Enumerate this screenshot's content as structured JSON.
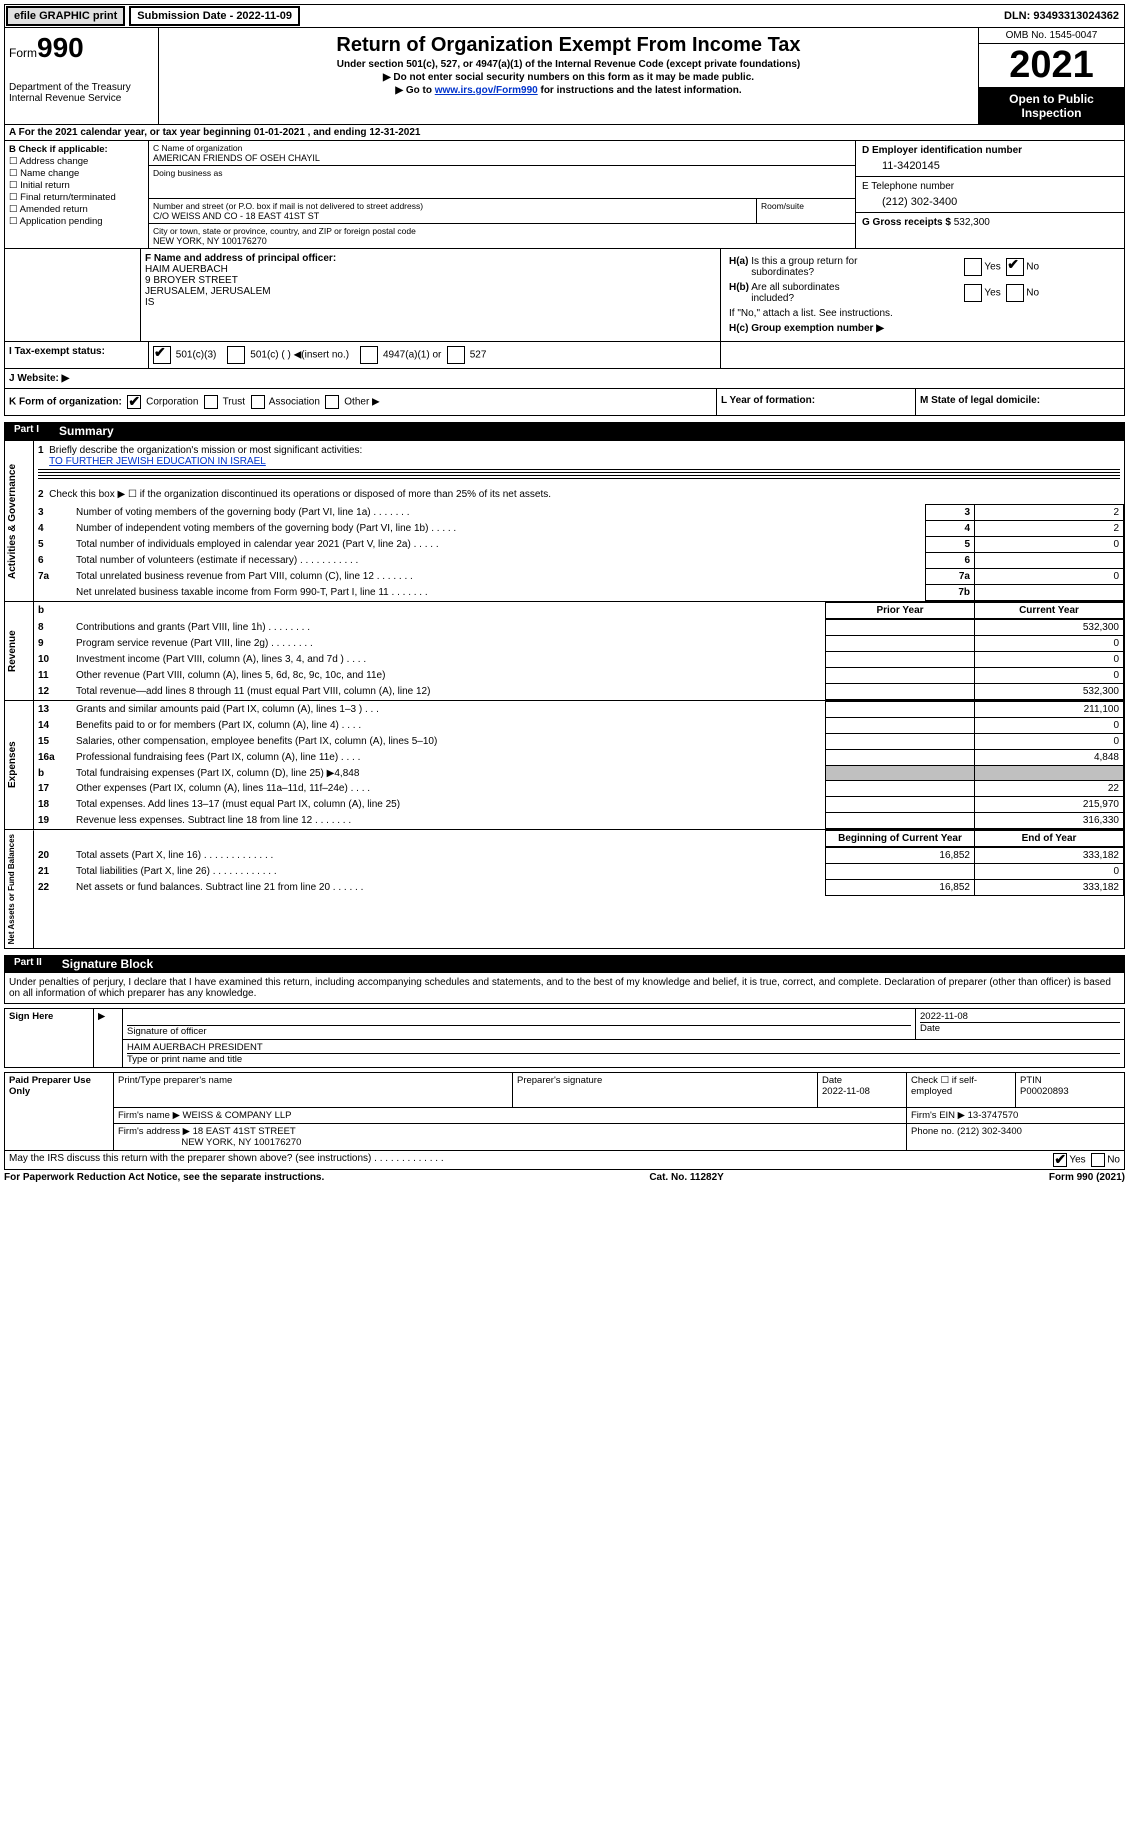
{
  "topbar": {
    "efile": "efile GRAPHIC print",
    "subdate_label": "Submission Date - 2022-11-09",
    "dln": "DLN: 93493313024362"
  },
  "header": {
    "form_prefix": "Form",
    "form_number": "990",
    "title": "Return of Organization Exempt From Income Tax",
    "subtitle": "Under section 501(c), 527, or 4947(a)(1) of the Internal Revenue Code (except private foundations)",
    "warn1": "▶ Do not enter social security numbers on this form as it may be made public.",
    "warn2_prefix": "▶ Go to ",
    "warn2_link": "www.irs.gov/Form990",
    "warn2_suffix": " for instructions and the latest information.",
    "dept": "Department of the Treasury",
    "irs": "Internal Revenue Service",
    "omb": "OMB No. 1545-0047",
    "year": "2021",
    "open": "Open to Public Inspection"
  },
  "line_a": "A For the 2021 calendar year, or tax year beginning 01-01-2021   , and ending 12-31-2021",
  "section_b": {
    "header": "B Check if applicable:",
    "items": [
      "Address change",
      "Name change",
      "Initial return",
      "Final return/terminated",
      "Amended return",
      "Application pending"
    ]
  },
  "section_c": {
    "name_label": "C Name of organization",
    "name": "AMERICAN FRIENDS OF OSEH CHAYIL",
    "dba_label": "Doing business as",
    "dba": "",
    "street_label": "Number and street (or P.O. box if mail is not delivered to street address)",
    "street": "C/O WEISS AND CO - 18 EAST 41ST ST",
    "suite_label": "Room/suite",
    "city_label": "City or town, state or province, country, and ZIP or foreign postal code",
    "city": "NEW YORK, NY  100176270"
  },
  "section_d": {
    "ein_label": "D Employer identification number",
    "ein": "11-3420145",
    "phone_label": "E Telephone number",
    "phone": "(212) 302-3400",
    "gross_label": "G Gross receipts $ ",
    "gross": "532,300"
  },
  "section_f": {
    "label": "F Name and address of principal officer:",
    "name": "HAIM AUERBACH",
    "addr1": "9 BROYER STREET",
    "addr2": "JERUSALEM, JERUSALEM",
    "addr3": "IS"
  },
  "section_h": {
    "ha_label": "H(a) Is this a group return for subordinates?",
    "hb_label": "H(b) Are all subordinates included?",
    "hb_note": "If \"No,\" attach a list. See instructions.",
    "hc_label": "H(c) Group exemption number ▶",
    "yes": "Yes",
    "no": "No"
  },
  "tax_status": {
    "label": "I    Tax-exempt status:",
    "opt1": "501(c)(3)",
    "opt2": "501(c) (  ) ◀(insert no.)",
    "opt3": "4947(a)(1) or",
    "opt4": "527"
  },
  "website": {
    "label": "J   Website: ▶"
  },
  "k_row": {
    "k": "K Form of organization:",
    "corp": "Corporation",
    "trust": "Trust",
    "assoc": "Association",
    "other": "Other ▶",
    "l": "L Year of formation:",
    "m": "M State of legal domicile:"
  },
  "part1": {
    "num": "Part I",
    "title": "Summary"
  },
  "summary": {
    "s1_label": "Briefly describe the organization's mission or most significant activities:",
    "s1_val": "TO FURTHER JEWISH EDUCATION IN ISRAEL",
    "s2": "Check this box ▶ ☐ if the organization discontinued its operations or disposed of more than 25% of its net assets.",
    "lines": [
      {
        "n": "3",
        "t": "Number of voting members of the governing body (Part VI, line 1a)   .    .    .    .    .    .    .",
        "box": "3",
        "v": "2"
      },
      {
        "n": "4",
        "t": "Number of independent voting members of the governing body (Part VI, line 1b)  .    .    .    .    .",
        "box": "4",
        "v": "2"
      },
      {
        "n": "5",
        "t": "Total number of individuals employed in calendar year 2021 (Part V, line 2a)   .    .    .    .    .",
        "box": "5",
        "v": "0"
      },
      {
        "n": "6",
        "t": "Total number of volunteers (estimate if necessary)    .    .    .    .    .    .    .    .    .    .    .",
        "box": "6",
        "v": ""
      },
      {
        "n": "7a",
        "t": "Total unrelated business revenue from Part VIII, column (C), line 12   .    .    .    .    .    .    .",
        "box": "7a",
        "v": "0"
      },
      {
        "n": "",
        "t": "Net unrelated business taxable income from Form 990-T, Part I, line 11   .    .    .    .    .    .    .",
        "box": "7b",
        "v": ""
      }
    ],
    "prior_year": "Prior Year",
    "current_year": "Current Year",
    "revenue": [
      {
        "n": "8",
        "t": "Contributions and grants (Part VIII, line 1h)   .    .    .    .    .    .    .    .",
        "p": "",
        "c": "532,300"
      },
      {
        "n": "9",
        "t": "Program service revenue (Part VIII, line 2g)    .    .    .    .    .    .    .    .",
        "p": "",
        "c": "0"
      },
      {
        "n": "10",
        "t": "Investment income (Part VIII, column (A), lines 3, 4, and 7d )   .    .    .    .",
        "p": "",
        "c": "0"
      },
      {
        "n": "11",
        "t": "Other revenue (Part VIII, column (A), lines 5, 6d, 8c, 9c, 10c, and 11e)",
        "p": "",
        "c": "0"
      },
      {
        "n": "12",
        "t": "Total revenue—add lines 8 through 11 (must equal Part VIII, column (A), line 12)",
        "p": "",
        "c": "532,300"
      }
    ],
    "expenses": [
      {
        "n": "13",
        "t": "Grants and similar amounts paid (Part IX, column (A), lines 1–3 )   .    .    .",
        "p": "",
        "c": "211,100"
      },
      {
        "n": "14",
        "t": "Benefits paid to or for members (Part IX, column (A), line 4)   .    .    .    .",
        "p": "",
        "c": "0"
      },
      {
        "n": "15",
        "t": "Salaries, other compensation, employee benefits (Part IX, column (A), lines 5–10)",
        "p": "",
        "c": "0"
      },
      {
        "n": "16a",
        "t": "Professional fundraising fees (Part IX, column (A), line 11e)   .    .    .    .",
        "p": "",
        "c": "4,848"
      },
      {
        "n": "b",
        "t": "Total fundraising expenses (Part IX, column (D), line 25) ▶4,848",
        "p": "shaded",
        "c": "shaded"
      },
      {
        "n": "17",
        "t": "Other expenses (Part IX, column (A), lines 11a–11d, 11f–24e)   .    .    .    .",
        "p": "",
        "c": "22"
      },
      {
        "n": "18",
        "t": "Total expenses. Add lines 13–17 (must equal Part IX, column (A), line 25)",
        "p": "",
        "c": "215,970"
      },
      {
        "n": "19",
        "t": "Revenue less expenses. Subtract line 18 from line 12   .    .    .    .    .    .    .",
        "p": "",
        "c": "316,330"
      }
    ],
    "bcy": "Beginning of Current Year",
    "eoy": "End of Year",
    "netassets": [
      {
        "n": "20",
        "t": "Total assets (Part X, line 16)   .    .    .    .    .    .    .    .    .    .    .    .    .",
        "p": "16,852",
        "c": "333,182"
      },
      {
        "n": "21",
        "t": "Total liabilities (Part X, line 26)   .    .    .    .    .    .    .    .    .    .    .    .",
        "p": "",
        "c": "0"
      },
      {
        "n": "22",
        "t": "Net assets or fund balances. Subtract line 21 from line 20   .    .    .    .    .    .",
        "p": "16,852",
        "c": "333,182"
      }
    ],
    "side_labels": [
      "Activities & Governance",
      "Revenue",
      "Expenses",
      "Net Assets or Fund Balances"
    ]
  },
  "part2": {
    "num": "Part II",
    "title": "Signature Block",
    "penalty": "Under penalties of perjury, I declare that I have examined this return, including accompanying schedules and statements, and to the best of my knowledge and belief, it is true, correct, and complete. Declaration of preparer (other than officer) is based on all information of which preparer has any knowledge."
  },
  "sign": {
    "sign_here": "Sign Here",
    "sig_officer": "Signature of officer",
    "sig_date": "2022-11-08",
    "date_label": "Date",
    "officer_name": "HAIM AUERBACH  PRESIDENT",
    "type_name": "Type or print name and title",
    "paid_prep": "Paid Preparer Use Only",
    "print_prep_label": "Print/Type preparer's name",
    "prep_sig_label": "Preparer's signature",
    "date2_label": "Date",
    "date2": "2022-11-08",
    "check_self": "Check ☐ if self-employed",
    "ptin_label": "PTIN",
    "ptin": "P00020893",
    "firm_name_label": "Firm's name    ▶",
    "firm_name": "WEISS & COMPANY LLP",
    "firm_ein_label": "Firm's EIN ▶",
    "firm_ein": "13-3747570",
    "firm_addr_label": "Firm's address ▶",
    "firm_addr1": "18 EAST 41ST STREET",
    "firm_addr2": "NEW YORK, NY  100176270",
    "phone_label": "Phone no.",
    "phone": "(212) 302-3400",
    "discuss": "May the IRS discuss this return with the preparer shown above? (see instructions)   .    .    .    .    .    .    .    .    .    .    .    .    .",
    "yes": "Yes",
    "no": "No"
  },
  "footer": {
    "left": "For Paperwork Reduction Act Notice, see the separate instructions.",
    "mid": "Cat. No. 11282Y",
    "right": "Form 990 (2021)"
  }
}
